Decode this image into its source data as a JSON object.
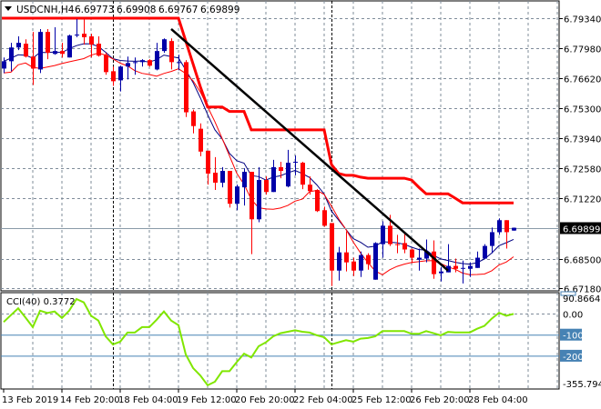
{
  "header": {
    "menu_icon": "triangle-down-icon",
    "symbol": "USDCNH,H4",
    "open": "6.69773",
    "high": "6.69908",
    "low": "6.69767",
    "close": "6.69899"
  },
  "chart_data": {
    "type": "candlestick",
    "symbol": "USDCNH",
    "timeframe": "H4",
    "first_bar_time": "13 Feb 2019 12:00",
    "x_tick_labels": [
      "13 Feb 2019",
      "14 Feb 20:00",
      "18 Feb 04:00",
      "19 Feb 12:00",
      "20 Feb 20:00",
      "22 Feb 04:00",
      "25 Feb 12:00",
      "26 Feb 20:00",
      "28 Feb 04:00"
    ],
    "price_axis": {
      "ticks": [
        "6.79340",
        "6.77980",
        "6.76620",
        "6.75300",
        "6.73940",
        "6.72580",
        "6.71220",
        "6.68500",
        "6.67180"
      ],
      "range": [
        6.6718,
        6.7934
      ]
    },
    "current_price": "6.69899",
    "candle_format": [
      "open",
      "high",
      "low",
      "close"
    ],
    "candles": [
      [
        6.7707,
        6.7757,
        6.7687,
        6.774
      ],
      [
        6.774,
        6.7823,
        6.7695,
        6.7802
      ],
      [
        6.7802,
        6.7852,
        6.779,
        6.7823
      ],
      [
        6.7819,
        6.7839,
        6.7757,
        6.7761
      ],
      [
        6.7761,
        6.7872,
        6.7633,
        6.7707
      ],
      [
        6.7703,
        6.7885,
        6.7687,
        6.7872
      ],
      [
        6.7872,
        6.7885,
        6.7749,
        6.7778
      ],
      [
        6.7773,
        6.7893,
        6.7769,
        6.7786
      ],
      [
        6.7786,
        6.7823,
        6.7757,
        6.7773
      ],
      [
        6.7757,
        6.786,
        6.7757,
        6.7856
      ],
      [
        6.7856,
        6.793,
        6.7848,
        6.786
      ],
      [
        6.7864,
        6.793,
        6.7815,
        6.7848
      ],
      [
        6.7852,
        6.7864,
        6.7757,
        6.7815
      ],
      [
        6.7819,
        6.7852,
        6.7761,
        6.7765
      ],
      [
        6.7769,
        6.7778,
        6.7679,
        6.7691
      ],
      [
        6.7695,
        6.7716,
        6.7629,
        6.765
      ],
      [
        6.7654,
        6.772,
        6.7604,
        6.7716
      ],
      [
        6.7716,
        6.7761,
        6.7658,
        6.7732
      ],
      [
        6.7732,
        6.7757,
        6.7679,
        6.7736
      ],
      [
        6.7736,
        6.7749,
        6.7716,
        6.7745
      ],
      [
        6.7745,
        6.7749,
        6.7716,
        6.772
      ],
      [
        6.7703,
        6.7823,
        6.7699,
        6.7786
      ],
      [
        6.7786,
        6.7843,
        6.7778,
        6.7839
      ],
      [
        6.7831,
        6.7843,
        6.7703,
        6.7736
      ],
      [
        6.7732,
        6.7769,
        6.7699,
        6.7736
      ],
      [
        6.7736,
        6.7745,
        6.7489,
        6.751
      ],
      [
        6.7514,
        6.7522,
        6.7415,
        6.7448
      ],
      [
        6.7436,
        6.746,
        6.7312,
        6.7333
      ],
      [
        6.7337,
        6.7337,
        6.7184,
        6.7234
      ],
      [
        6.7238,
        6.7308,
        6.716,
        6.7193
      ],
      [
        6.7193,
        6.7263,
        6.7172,
        6.7246
      ],
      [
        6.7246,
        6.7246,
        6.7081,
        6.7098
      ],
      [
        6.7098,
        6.7184,
        6.7069,
        6.7176
      ],
      [
        6.7172,
        6.7258,
        6.709,
        6.7242
      ],
      [
        6.7242,
        6.7242,
        6.6871,
        6.7028
      ],
      [
        6.7028,
        6.7263,
        6.7015,
        6.7205
      ],
      [
        6.7205,
        6.7221,
        6.7139,
        6.7151
      ],
      [
        6.7151,
        6.7296,
        6.7151,
        6.7263
      ],
      [
        6.7263,
        6.7287,
        6.7213,
        6.7246
      ],
      [
        6.7176,
        6.7341,
        6.7172,
        6.7283
      ],
      [
        6.7283,
        6.7316,
        6.7226,
        6.7287
      ],
      [
        6.7283,
        6.7287,
        6.7164,
        6.7184
      ],
      [
        6.7184,
        6.7221,
        6.7139,
        6.7155
      ],
      [
        6.716,
        6.7164,
        6.7061,
        6.7065
      ],
      [
        6.7069,
        6.7085,
        6.6995,
        6.6999
      ],
      [
        6.7011,
        6.7011,
        6.6727,
        6.6797
      ],
      [
        6.6797,
        6.6904,
        6.6752,
        6.6879
      ],
      [
        6.6879,
        6.6974,
        6.6793,
        6.6834
      ],
      [
        6.6838,
        6.6855,
        6.6772,
        6.6797
      ],
      [
        6.6797,
        6.6883,
        6.6768,
        6.6867
      ],
      [
        6.6867,
        6.6875,
        6.6801,
        6.6826
      ],
      [
        6.6756,
        6.6925,
        6.6756,
        6.6921
      ],
      [
        6.6916,
        6.7019,
        6.6855,
        6.6999
      ],
      [
        6.6999,
        6.7048,
        6.6908,
        6.6916
      ],
      [
        6.6916,
        6.6958,
        6.6875,
        6.6914
      ],
      [
        6.6921,
        6.6966,
        6.6875,
        6.6892
      ],
      [
        6.6892,
        6.6896,
        6.683,
        6.6855
      ],
      [
        6.6846,
        6.6896,
        6.6797,
        6.6855
      ],
      [
        6.6851,
        6.6937,
        6.6834,
        6.6883
      ],
      [
        6.6883,
        6.6933,
        6.676,
        6.6781
      ],
      [
        6.6785,
        6.6813,
        6.6748,
        6.6793
      ],
      [
        6.6789,
        6.6916,
        6.6789,
        6.6818
      ],
      [
        6.6818,
        6.6851,
        6.6789,
        6.6805
      ],
      [
        6.6805,
        6.6842,
        6.6739,
        6.6809
      ],
      [
        6.6805,
        6.6834,
        6.6768,
        6.6818
      ],
      [
        6.6809,
        6.6883,
        6.6809,
        6.6855
      ],
      [
        6.6851,
        6.6916,
        6.6851,
        6.6908
      ],
      [
        6.6908,
        6.6991,
        6.6875,
        6.697
      ],
      [
        6.697,
        6.7032,
        6.6958,
        6.7024
      ],
      [
        6.7024,
        6.7024,
        6.6896,
        6.697
      ],
      [
        6.69773,
        6.69908,
        6.69767,
        6.69899
      ]
    ],
    "step_line": [
      6.7934,
      6.7934,
      6.7934,
      6.7934,
      6.7934,
      6.7934,
      6.7934,
      6.7934,
      6.7934,
      6.7934,
      6.7934,
      6.7934,
      6.7934,
      6.7934,
      6.7934,
      6.7934,
      6.7934,
      6.7934,
      6.7934,
      6.7934,
      6.7934,
      6.7934,
      6.7934,
      6.7934,
      6.7934,
      6.7831,
      6.7728,
      6.7625,
      6.7534,
      6.7534,
      6.7534,
      6.7514,
      6.7514,
      6.7514,
      6.7431,
      6.7431,
      6.7431,
      6.7431,
      6.7431,
      6.7431,
      6.7431,
      6.7431,
      6.7431,
      6.7431,
      6.7431,
      6.7275,
      6.7234,
      6.7226,
      6.7226,
      6.7218,
      6.7213,
      6.7213,
      6.7213,
      6.7213,
      6.7213,
      6.7213,
      6.7205,
      6.7172,
      6.7143,
      6.7143,
      6.7143,
      6.7143,
      6.7123,
      6.7102,
      6.7102,
      6.7102,
      6.7102,
      6.7102,
      6.7102,
      6.7102,
      6.7102
    ],
    "trendline": {
      "from_time": "19 Feb 08:00",
      "from_price": 6.7885,
      "to_time": "27 Feb 16:00",
      "to_price": 6.6797
    },
    "week_separators": [
      "18 Feb 00:00",
      "25 Feb 00:00"
    ],
    "grid": true,
    "cci": {
      "label": "CCI(40) 0.3772",
      "values": [
        -38,
        -5,
        27,
        -17,
        -62,
        16,
        5,
        12,
        -19,
        16,
        71,
        55,
        -8,
        -31,
        -106,
        -144,
        -131,
        -88,
        -88,
        -62,
        -62,
        -27,
        12,
        -31,
        -53,
        -192,
        -256,
        -292,
        -338,
        -321,
        -271,
        -271,
        -228,
        -188,
        -206,
        -153,
        -134,
        -106,
        -91,
        -84,
        -77,
        -84,
        -88,
        -101,
        -110,
        -144,
        -134,
        -124,
        -131,
        -117,
        -114,
        -106,
        -81,
        -81,
        -81,
        -81,
        -94,
        -94,
        -81,
        -91,
        -101,
        -85,
        -87,
        -87,
        -87,
        -70,
        -56,
        -22,
        6,
        -8,
        0.3772
      ],
      "range": [
        -355.7949,
        90.8664
      ],
      "axis_labels": {
        "max": "90.8664",
        "zero": "0.00",
        "level1": "-100",
        "level2": "-200",
        "min": "-355.7949"
      }
    },
    "colors": {
      "bull": "#0000a8",
      "bear": "#ff0000",
      "ma_fast": "#000080",
      "ma_low": "#ff0000",
      "step_line": "#ff0000",
      "trendline": "#000000",
      "cci_line": "#80e600",
      "cci_levels": "#4682b4",
      "grid": "#7f8c9a"
    }
  }
}
